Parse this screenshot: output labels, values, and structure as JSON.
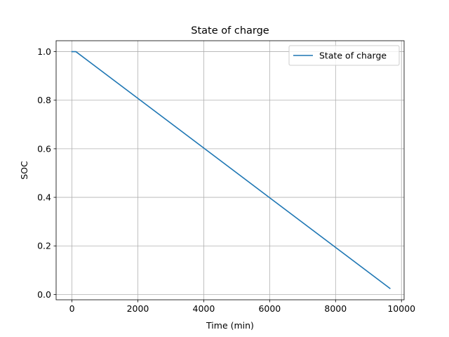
{
  "chart_data": {
    "type": "line",
    "title": "State of charge",
    "xlabel": "Time (min)",
    "ylabel": "SOC",
    "xlim": [
      -480,
      10080
    ],
    "ylim": [
      -0.022,
      1.045
    ],
    "x_ticks": [
      0,
      2000,
      4000,
      6000,
      8000,
      10000
    ],
    "x_tick_labels": [
      "0",
      "2000",
      "4000",
      "6000",
      "8000",
      "10000"
    ],
    "y_ticks": [
      0.0,
      0.2,
      0.4,
      0.6,
      0.8,
      1.0
    ],
    "y_tick_labels": [
      "0.0",
      "0.2",
      "0.4",
      "0.6",
      "0.8",
      "1.0"
    ],
    "grid": true,
    "legend_position": "top-right",
    "series": [
      {
        "name": "State of charge",
        "color": "#1f77b4",
        "x": [
          0,
          120,
          9650
        ],
        "y": [
          1.0,
          1.0,
          0.025
        ]
      }
    ]
  }
}
